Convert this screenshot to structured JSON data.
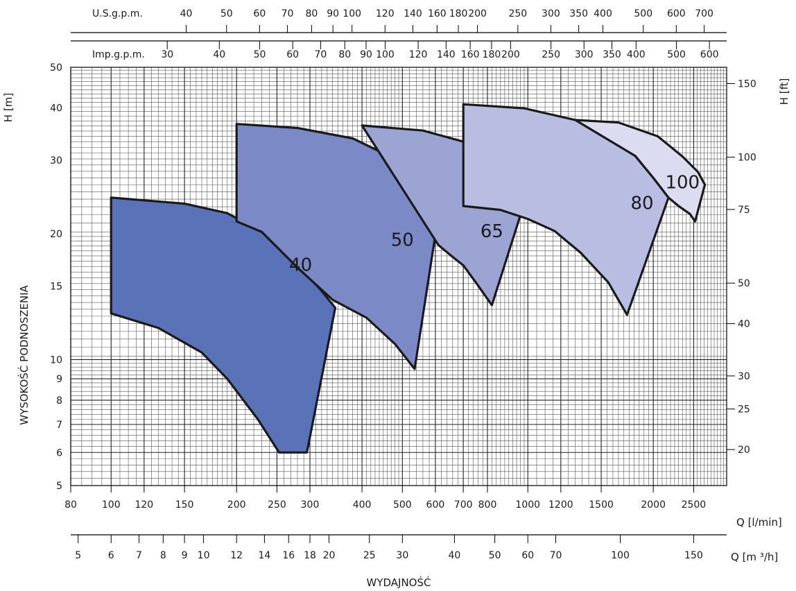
{
  "chart_data": {
    "type": "area",
    "title": "",
    "xlabel": "WYDAJNOŚĆ",
    "ylabel": "WYSOKOŚĆ PODNOSZENIA",
    "x_scale": "log",
    "y_scale": "log",
    "xlim": [
      80,
      3000
    ],
    "ylim": [
      5,
      50
    ],
    "grid": true,
    "legend": "none",
    "axes": {
      "bottom_unit": "Q [l/min]",
      "left_unit": "H [m]",
      "right_unit": "H [ft]",
      "q_m3h_unit": "Q [m ³/h]",
      "us_gpm_unit": "U.S.g.p.m.",
      "imp_gpm_unit": "Imp.g.p.m.",
      "lmin_ticks": [
        {
          "v": 80,
          "l": "80"
        },
        {
          "v": 100,
          "l": "100"
        },
        {
          "v": 120,
          "l": "120"
        },
        {
          "v": 150,
          "l": "150"
        },
        {
          "v": 200,
          "l": "200"
        },
        {
          "v": 250,
          "l": "250"
        },
        {
          "v": 300,
          "l": "300"
        },
        {
          "v": 400,
          "l": "400"
        },
        {
          "v": 500,
          "l": "500"
        },
        {
          "v": 600,
          "l": "600"
        },
        {
          "v": 700,
          "l": "700"
        },
        {
          "v": 800,
          "l": "800"
        },
        {
          "v": 1000,
          "l": "1000"
        },
        {
          "v": 1200,
          "l": "1200"
        },
        {
          "v": 1500,
          "l": "1500"
        },
        {
          "v": 2000,
          "l": "2000"
        },
        {
          "v": 2500,
          "l": "2500"
        }
      ],
      "m3h_ticks": [
        {
          "v": 5,
          "l": "5"
        },
        {
          "v": 6,
          "l": "6"
        },
        {
          "v": 7,
          "l": "7"
        },
        {
          "v": 8,
          "l": "8"
        },
        {
          "v": 9,
          "l": "9"
        },
        {
          "v": 10,
          "l": "10"
        },
        {
          "v": 12,
          "l": "12"
        },
        {
          "v": 14,
          "l": "14"
        },
        {
          "v": 16,
          "l": "16"
        },
        {
          "v": 18,
          "l": "18"
        },
        {
          "v": 20,
          "l": "20"
        },
        {
          "v": 25,
          "l": "25"
        },
        {
          "v": 30,
          "l": "30"
        },
        {
          "v": 40,
          "l": "40"
        },
        {
          "v": 50,
          "l": "50"
        },
        {
          "v": 60,
          "l": "60"
        },
        {
          "v": 70,
          "l": "70"
        },
        {
          "v": 100,
          "l": "100"
        },
        {
          "v": 150,
          "l": "150"
        }
      ],
      "us_gpm_ticks": [
        {
          "v": 40,
          "l": "40"
        },
        {
          "v": 50,
          "l": "50"
        },
        {
          "v": 60,
          "l": "60"
        },
        {
          "v": 70,
          "l": "70"
        },
        {
          "v": 80,
          "l": "80"
        },
        {
          "v": 90,
          "l": "90"
        },
        {
          "v": 100,
          "l": "100"
        },
        {
          "v": 120,
          "l": "120"
        },
        {
          "v": 140,
          "l": "140"
        },
        {
          "v": 160,
          "l": "160"
        },
        {
          "v": 180,
          "l": "180"
        },
        {
          "v": 200,
          "l": "200"
        },
        {
          "v": 250,
          "l": "250"
        },
        {
          "v": 300,
          "l": "300"
        },
        {
          "v": 350,
          "l": "350"
        },
        {
          "v": 400,
          "l": "400"
        },
        {
          "v": 500,
          "l": "500"
        },
        {
          "v": 600,
          "l": "600"
        },
        {
          "v": 700,
          "l": "700"
        }
      ],
      "imp_gpm_ticks": [
        {
          "v": 30,
          "l": "30"
        },
        {
          "v": 40,
          "l": "40"
        },
        {
          "v": 50,
          "l": "50"
        },
        {
          "v": 60,
          "l": "60"
        },
        {
          "v": 70,
          "l": "70"
        },
        {
          "v": 80,
          "l": "80"
        },
        {
          "v": 90,
          "l": "90"
        },
        {
          "v": 100,
          "l": "100"
        },
        {
          "v": 120,
          "l": "120"
        },
        {
          "v": 140,
          "l": "140"
        },
        {
          "v": 160,
          "l": "160"
        },
        {
          "v": 180,
          "l": "180"
        },
        {
          "v": 200,
          "l": "200"
        },
        {
          "v": 250,
          "l": "250"
        },
        {
          "v": 300,
          "l": "300"
        },
        {
          "v": 350,
          "l": "350"
        },
        {
          "v": 400,
          "l": "400"
        },
        {
          "v": 500,
          "l": "500"
        },
        {
          "v": 600,
          "l": "600"
        }
      ],
      "h_m_ticks": [
        {
          "v": 5,
          "l": "5"
        },
        {
          "v": 6,
          "l": "6"
        },
        {
          "v": 7,
          "l": "7"
        },
        {
          "v": 8,
          "l": "8"
        },
        {
          "v": 9,
          "l": "9"
        },
        {
          "v": 10,
          "l": "10"
        },
        {
          "v": 15,
          "l": "15"
        },
        {
          "v": 20,
          "l": "20"
        },
        {
          "v": 30,
          "l": "30"
        },
        {
          "v": 40,
          "l": "40"
        },
        {
          "v": 50,
          "l": "50"
        }
      ],
      "h_ft_ticks": [
        {
          "v": 20,
          "l": "20"
        },
        {
          "v": 25,
          "l": "25"
        },
        {
          "v": 30,
          "l": "30"
        },
        {
          "v": 40,
          "l": "40"
        },
        {
          "v": 50,
          "l": "50"
        },
        {
          "v": 75,
          "l": "75"
        },
        {
          "v": 100,
          "l": "100"
        },
        {
          "v": 150,
          "l": "150"
        }
      ]
    },
    "series": [
      {
        "name": "40",
        "color": "#5a72b8",
        "label_at": [
          285,
          16.3
        ],
        "points": [
          [
            100,
            24.4
          ],
          [
            150,
            23.6
          ],
          [
            190,
            22.4
          ],
          [
            230,
            20.2
          ],
          [
            270,
            17.6
          ],
          [
            320,
            14.6
          ],
          [
            345,
            13.3
          ],
          [
            295,
            6.0
          ],
          [
            253,
            6.0
          ],
          [
            225,
            7.2
          ],
          [
            190,
            9.0
          ],
          [
            165,
            10.4
          ],
          [
            130,
            11.9
          ],
          [
            100,
            12.9
          ]
        ]
      },
      {
        "name": "50",
        "color": "#7b8ac6",
        "label_at": [
          500,
          18.7
        ],
        "points": [
          [
            200,
            36.6
          ],
          [
            280,
            35.8
          ],
          [
            380,
            33.8
          ],
          [
            480,
            30.2
          ],
          [
            560,
            26.5
          ],
          [
            620,
            24.6
          ],
          [
            535,
            9.5
          ],
          [
            480,
            10.9
          ],
          [
            410,
            12.6
          ],
          [
            340,
            13.9
          ],
          [
            280,
            16.6
          ],
          [
            230,
            20.2
          ],
          [
            200,
            21.4
          ]
        ]
      },
      {
        "name": "65",
        "color": "#9ba4d2",
        "label_at": [
          820,
          19.6
        ],
        "points": [
          [
            400,
            36.3
          ],
          [
            560,
            35.3
          ],
          [
            700,
            33.2
          ],
          [
            840,
            30.2
          ],
          [
            960,
            27.6
          ],
          [
            1020,
            26.8
          ],
          [
            820,
            13.5
          ],
          [
            750,
            15.3
          ],
          [
            700,
            16.8
          ],
          [
            660,
            17.6
          ],
          [
            610,
            18.8
          ]
        ]
      },
      {
        "name": "80",
        "color": "#b9bde2",
        "label_at": [
          1880,
          22.9
        ],
        "points": [
          [
            700,
            40.8
          ],
          [
            980,
            39.9
          ],
          [
            1300,
            37.4
          ],
          [
            1560,
            34.2
          ],
          [
            1810,
            30.7
          ],
          [
            2000,
            27.2
          ],
          [
            2175,
            24.4
          ],
          [
            1730,
            12.8
          ],
          [
            1560,
            15.3
          ],
          [
            1340,
            18.0
          ],
          [
            1160,
            20.3
          ],
          [
            1000,
            21.7
          ],
          [
            860,
            22.8
          ],
          [
            700,
            23.3
          ]
        ]
      },
      {
        "name": "100",
        "color": "#dcdcf0",
        "label_at": [
          2350,
          25.7
        ],
        "points": [
          [
            1300,
            37.4
          ],
          [
            1650,
            36.9
          ],
          [
            2050,
            34.2
          ],
          [
            2350,
            30.6
          ],
          [
            2560,
            28.1
          ],
          [
            2660,
            26.2
          ],
          [
            2520,
            21.4
          ],
          [
            2450,
            22.3
          ],
          [
            2300,
            23.3
          ],
          [
            2175,
            24.4
          ],
          [
            2000,
            27.2
          ],
          [
            1810,
            30.7
          ]
        ]
      }
    ]
  }
}
